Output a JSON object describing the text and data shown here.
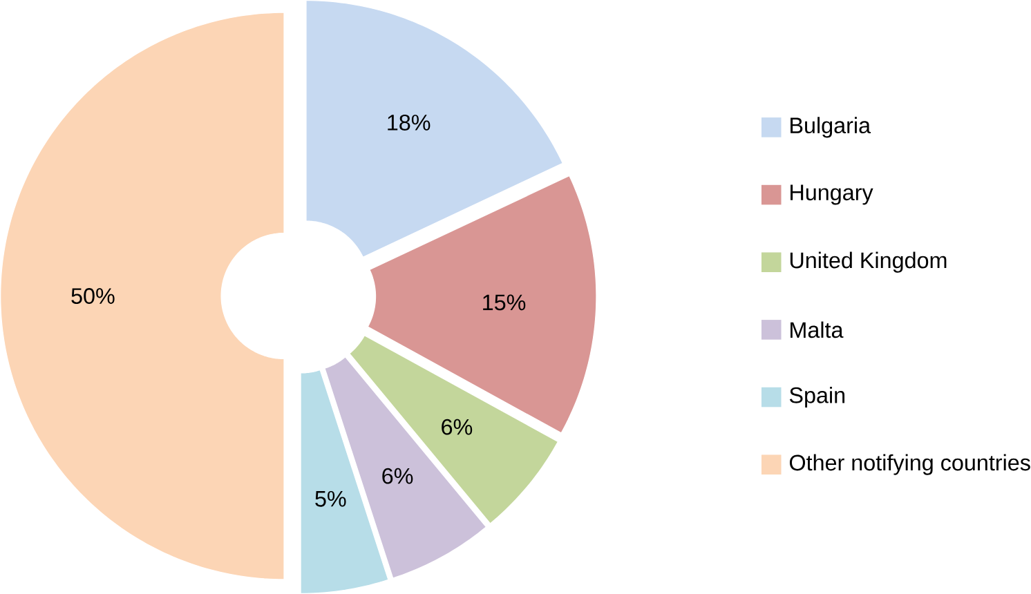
{
  "chart_data": {
    "type": "donut",
    "categories": [
      "Bulgaria",
      "Hungary",
      "United Kingdom",
      "Malta",
      "Spain",
      "Other notifying countries"
    ],
    "values": [
      18,
      15,
      6,
      6,
      5,
      50
    ],
    "value_labels": [
      "18%",
      "15%",
      "6%",
      "6%",
      "5%",
      "50%"
    ],
    "colors": [
      "#c6d9f1",
      "#d99694",
      "#c3d69b",
      "#ccc1da",
      "#b7dde8",
      "#fcd5b5"
    ],
    "legend": "right"
  }
}
